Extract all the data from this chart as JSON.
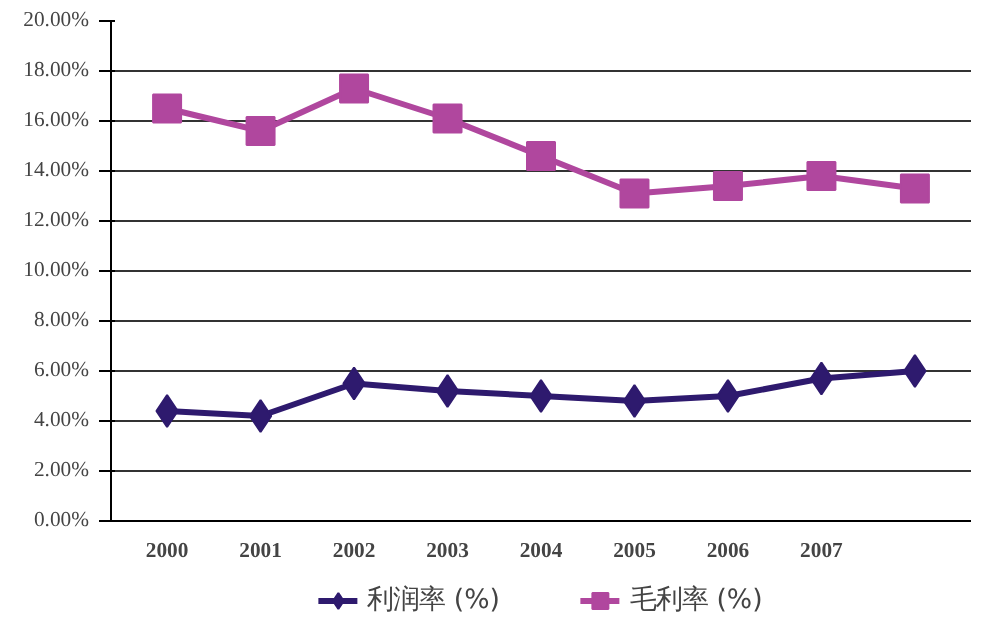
{
  "chart_data": {
    "type": "line",
    "categories": [
      "2000",
      "2001",
      "2002",
      "2003",
      "2004",
      "2005",
      "2006",
      "2007",
      null
    ],
    "series": [
      {
        "name": "利润率 (%)",
        "color": "#2e1a6e",
        "marker": "diamond",
        "values": [
          4.4,
          4.2,
          5.5,
          5.2,
          5.0,
          4.8,
          5.0,
          5.7,
          6.0
        ]
      },
      {
        "name": "毛利率 (%)",
        "color": "#b0479e",
        "marker": "square",
        "values": [
          16.5,
          15.6,
          17.3,
          16.1,
          14.6,
          13.1,
          13.4,
          13.8,
          13.3
        ]
      }
    ],
    "ylim": [
      0,
      20
    ],
    "yticks": [
      {
        "value": 0,
        "label": "0.00%"
      },
      {
        "value": 2,
        "label": "2.00%"
      },
      {
        "value": 4,
        "label": "4.00%"
      },
      {
        "value": 6,
        "label": "6.00%"
      },
      {
        "value": 8,
        "label": "8.00%"
      },
      {
        "value": 10,
        "label": "10.00%"
      },
      {
        "value": 12,
        "label": "12.00%"
      },
      {
        "value": 14,
        "label": "14.00%"
      },
      {
        "value": 16,
        "label": "16.00%"
      },
      {
        "value": 18,
        "label": "18.00%"
      },
      {
        "value": 20,
        "label": "20.00%"
      }
    ],
    "grid": "y",
    "legend": "bottom"
  }
}
